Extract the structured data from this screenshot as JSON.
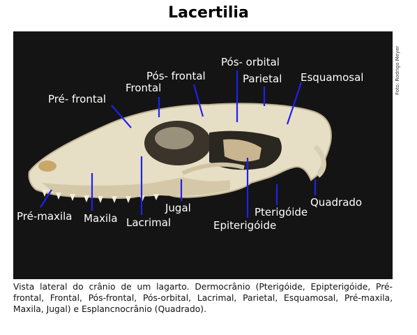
{
  "title": "Lacertilia",
  "photo_credit": "Foto: Rodrigo Meyer",
  "labels": {
    "pre_frontal": "Pré- frontal",
    "frontal": "Frontal",
    "pos_frontal": "Pós- frontal",
    "pos_orbital": "Pós- orbital",
    "parietal": "Parietal",
    "esquamosal": "Esquamosal",
    "quadrado": "Quadrado",
    "pterigoide": "Pterigóide",
    "epiterigoide": "Epiterigóide",
    "jugal": "Jugal",
    "lacrimal": "Lacrimal",
    "maxila": "Maxila",
    "pre_maxila": "Pré-maxila"
  },
  "caption": "Vista lateral do crânio de um lagarto. Dermocrânio (Pterigóide, Epipterigóide, Pré-frontal, Frontal, Pós-frontal, Pós-orbital, Lacrimal, Parietal, Esquamosal, Pré-maxila, Maxila, Jugal) e Esplancnocrânio (Quadrado).",
  "colors": {
    "leader_line": "#2020ee",
    "label_text": "#ffffff",
    "background": "#141414"
  }
}
